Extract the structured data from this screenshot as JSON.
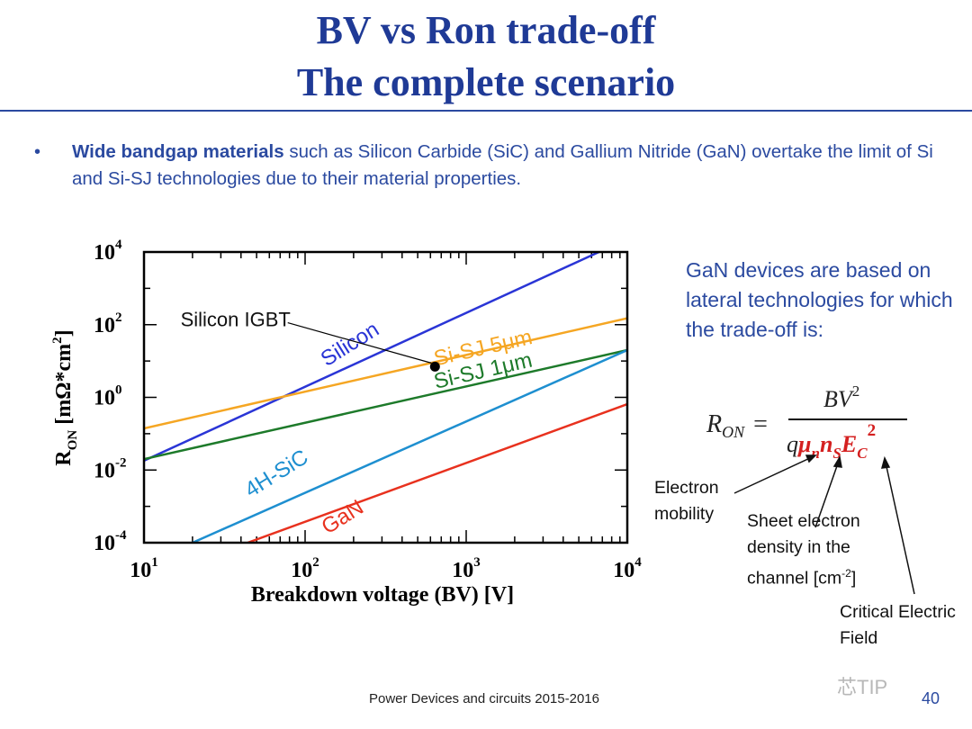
{
  "slide": {
    "title_line1": "BV vs Ron trade-off",
    "title_line2": "The complete scenario",
    "bullet_bold": "Wide bandgap materials",
    "bullet_rest": " such as Silicon Carbide (SiC) and Gallium Nitride (GaN) overtake the limit of Si and Si-SJ technologies due to their material properties.",
    "side_text": "GaN  devices are based on lateral technologies for which the trade-off is:",
    "footer": "Power Devices and circuits 2015-2016",
    "page_number": "40",
    "watermark": "芯TIP",
    "notes": {
      "electron_mobility": "Electron mobility",
      "sheet_density": "Sheet electron density in the channel [cm",
      "sheet_density_exp": "-2",
      "sheet_density_end": "]",
      "critical_field": "Critical Electric Field"
    }
  },
  "chart_data": {
    "type": "line",
    "xscale": "log",
    "yscale": "log",
    "xlabel": "Breakdown voltage (BV) [V]",
    "ylabel": "R",
    "ylabel_sub": "ON",
    "ylabel_unit": "[mΩ*cm",
    "ylabel_unit_exp": "2",
    "ylabel_unit_end": "]",
    "xlim": [
      10,
      10000
    ],
    "ylim": [
      0.0001,
      10000
    ],
    "x_ticks": [
      {
        "base": "10",
        "exp": "1"
      },
      {
        "base": "10",
        "exp": "2"
      },
      {
        "base": "10",
        "exp": "3"
      },
      {
        "base": "10",
        "exp": "4"
      }
    ],
    "y_ticks": [
      {
        "base": "10",
        "exp": "-4"
      },
      {
        "base": "10",
        "exp": "-2"
      },
      {
        "base": "10",
        "exp": "0"
      },
      {
        "base": "10",
        "exp": "2"
      },
      {
        "base": "10",
        "exp": "4"
      }
    ],
    "series": [
      {
        "name": "Silicon",
        "color": "#2a35d6",
        "x": [
          10,
          6666
        ],
        "y": [
          0.018,
          10000
        ],
        "label_at": [
          200,
          20
        ],
        "label_angle": -32
      },
      {
        "name": "Si-SJ 5μm",
        "color": "#f5a623",
        "x": [
          10,
          10000
        ],
        "y": [
          0.14,
          150
        ],
        "label_at": [
          1300,
          15
        ],
        "label_angle": -13
      },
      {
        "name": "Si-SJ 1μm",
        "color": "#1d7a2a",
        "x": [
          10,
          10000
        ],
        "y": [
          0.02,
          20
        ],
        "label_at": [
          1300,
          3.5
        ],
        "label_angle": -13
      },
      {
        "name": "4H-SiC",
        "color": "#1e8fd0",
        "x": [
          20,
          10000
        ],
        "y": [
          0.0001,
          20
        ],
        "label_at": [
          70,
          0.0055
        ],
        "label_angle": -32
      },
      {
        "name": "GaN",
        "color": "#e8311e",
        "x": [
          44,
          10000
        ],
        "y": [
          0.0001,
          0.65
        ],
        "label_at": [
          180,
          0.00035
        ],
        "label_angle": -32
      }
    ],
    "annotations": [
      {
        "text": "Silicon IGBT",
        "x": 640,
        "y": 7.0,
        "marker": "dot",
        "label_at": [
          37,
          90
        ]
      }
    ]
  }
}
